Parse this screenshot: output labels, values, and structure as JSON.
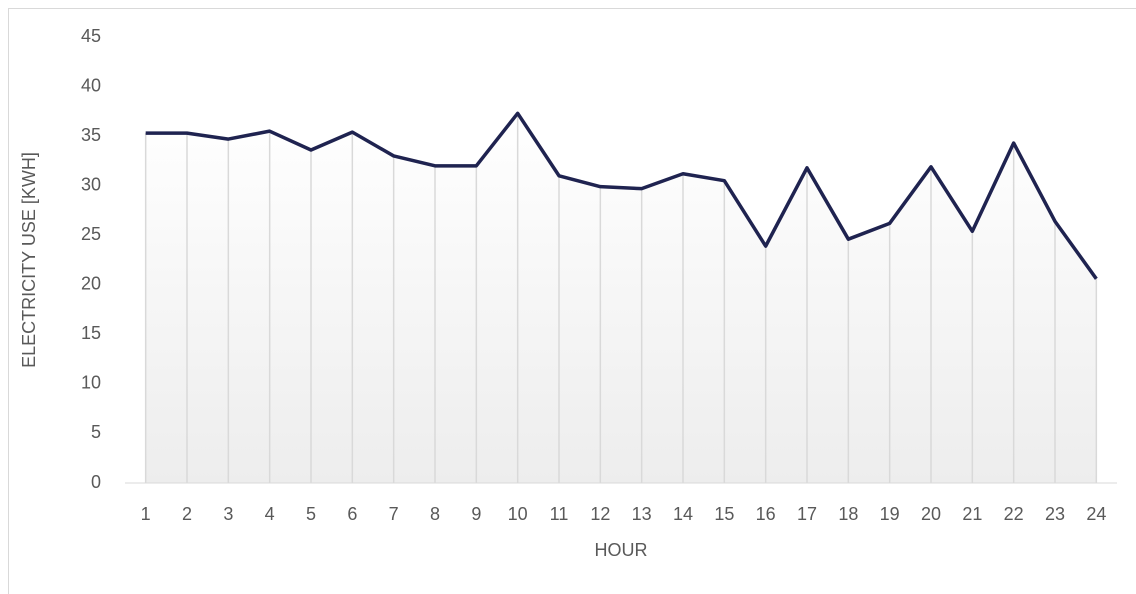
{
  "chart_data": {
    "type": "line",
    "xlabel": "HOUR",
    "ylabel": "ELECTRICITY USE [KWH]",
    "categories": [
      "1",
      "2",
      "3",
      "4",
      "5",
      "6",
      "7",
      "8",
      "9",
      "10",
      "11",
      "12",
      "13",
      "14",
      "15",
      "16",
      "17",
      "18",
      "19",
      "20",
      "21",
      "22",
      "23",
      "24"
    ],
    "values": [
      35.3,
      35.3,
      34.7,
      35.5,
      33.6,
      35.4,
      33.0,
      32.0,
      32.0,
      37.3,
      31.0,
      29.9,
      29.7,
      31.2,
      30.5,
      23.9,
      31.8,
      24.6,
      26.2,
      31.9,
      25.4,
      34.3,
      26.4,
      20.6
    ],
    "color": "#1f2350",
    "ylim": [
      0,
      45
    ],
    "yticks": [
      0,
      5,
      10,
      15,
      20,
      25,
      30,
      35,
      40,
      45
    ],
    "grid": false,
    "area": true,
    "drop_lines": true
  }
}
